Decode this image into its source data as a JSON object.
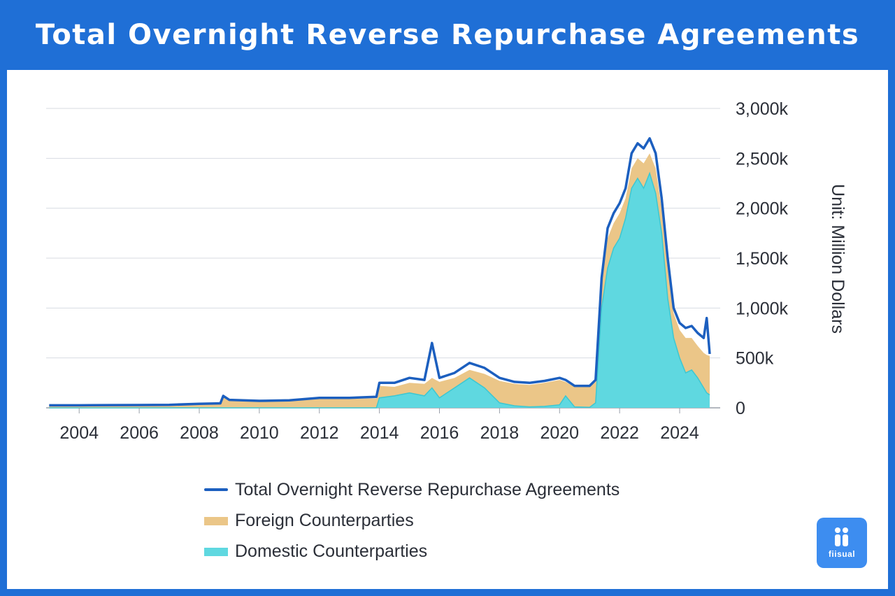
{
  "header": {
    "title": "Total Overnight Reverse Repurchase Agreements"
  },
  "logo": {
    "text": "fiisual"
  },
  "colors": {
    "frame": "#1f6fd6",
    "total": "#1c5fbf",
    "foreign": "#ebc688",
    "domestic": "#5fd8e0",
    "grid": "#d7dbe2"
  },
  "chart_data": {
    "type": "area",
    "title": "Total Overnight Reverse Repurchase Agreements",
    "xlabel": "",
    "ylabel": "Unit: Million Dollars",
    "ylim": [
      0,
      3000000
    ],
    "grid": true,
    "legend_position": "bottom",
    "x_ticks": [
      "2004",
      "2006",
      "2008",
      "2010",
      "2012",
      "2014",
      "2016",
      "2018",
      "2020",
      "2022",
      "2024"
    ],
    "y_ticks": [
      "0",
      "500k",
      "1,000k",
      "1,500k",
      "2,000k",
      "2,500k",
      "3,000k"
    ],
    "x": [
      2003.0,
      2004.0,
      2005.0,
      2006.0,
      2007.0,
      2008.0,
      2008.7,
      2008.8,
      2009.0,
      2010.0,
      2011.0,
      2012.0,
      2013.0,
      2013.9,
      2014.0,
      2014.5,
      2015.0,
      2015.5,
      2015.75,
      2016.0,
      2016.5,
      2017.0,
      2017.5,
      2018.0,
      2018.5,
      2019.0,
      2019.5,
      2020.0,
      2020.2,
      2020.5,
      2021.0,
      2021.2,
      2021.4,
      2021.6,
      2021.8,
      2022.0,
      2022.2,
      2022.4,
      2022.6,
      2022.8,
      2023.0,
      2023.2,
      2023.4,
      2023.6,
      2023.8,
      2024.0,
      2024.2,
      2024.4,
      2024.6,
      2024.8,
      2024.9,
      2025.0
    ],
    "series": [
      {
        "name": "Total Overnight Reverse Repurchase Agreements",
        "values": [
          25000,
          25000,
          27000,
          28000,
          30000,
          40000,
          45000,
          120000,
          80000,
          70000,
          75000,
          100000,
          100000,
          110000,
          250000,
          250000,
          300000,
          280000,
          650000,
          300000,
          350000,
          450000,
          400000,
          300000,
          260000,
          250000,
          270000,
          300000,
          280000,
          220000,
          220000,
          280000,
          1300000,
          1800000,
          1950000,
          2050000,
          2200000,
          2550000,
          2650000,
          2600000,
          2700000,
          2550000,
          2100000,
          1500000,
          1000000,
          850000,
          800000,
          820000,
          750000,
          700000,
          900000,
          540000
        ]
      },
      {
        "name": "Foreign Counterparties",
        "values": [
          25000,
          25000,
          27000,
          28000,
          30000,
          40000,
          45000,
          110000,
          75000,
          65000,
          70000,
          90000,
          90000,
          95000,
          220000,
          210000,
          250000,
          240000,
          300000,
          260000,
          300000,
          380000,
          340000,
          270000,
          240000,
          230000,
          250000,
          280000,
          260000,
          210000,
          210000,
          260000,
          1250000,
          1700000,
          1850000,
          1950000,
          2100000,
          2400000,
          2500000,
          2450000,
          2550000,
          2400000,
          2000000,
          1400000,
          950000,
          780000,
          700000,
          700000,
          620000,
          550000,
          530000,
          520000
        ]
      },
      {
        "name": "Domestic Counterparties",
        "values": [
          0,
          0,
          0,
          0,
          0,
          0,
          0,
          0,
          0,
          0,
          0,
          0,
          0,
          0,
          100000,
          120000,
          150000,
          120000,
          200000,
          100000,
          200000,
          300000,
          200000,
          50000,
          20000,
          10000,
          15000,
          30000,
          120000,
          10000,
          5000,
          50000,
          1000000,
          1400000,
          1600000,
          1700000,
          1900000,
          2200000,
          2300000,
          2200000,
          2350000,
          2150000,
          1750000,
          1100000,
          700000,
          500000,
          350000,
          380000,
          300000,
          200000,
          150000,
          130000
        ]
      }
    ]
  }
}
